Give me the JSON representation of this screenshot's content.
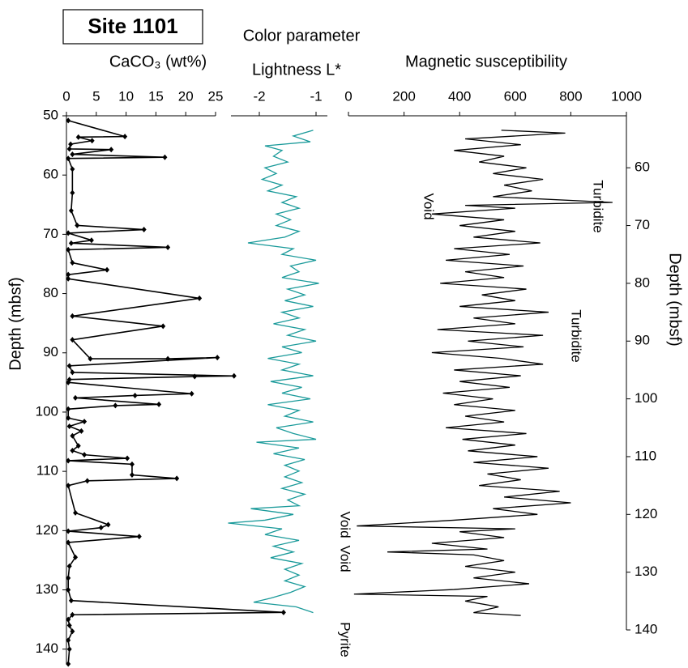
{
  "title": "Site 1101",
  "chart_data": [
    {
      "type": "line",
      "markers": true,
      "color": "#000000",
      "xlabel": "CaCO₃  (wt%)",
      "ylabel": "Depth  (mbsf)",
      "xlim": [
        0,
        25
      ],
      "xticks": [
        0,
        5,
        10,
        15,
        20,
        25
      ],
      "ylim": [
        50,
        142.5
      ],
      "yticks": [
        50,
        60,
        70,
        80,
        90,
        100,
        110,
        120,
        130,
        140
      ],
      "depth": [
        50.8,
        53.5,
        53.6,
        54.2,
        54.8,
        55.6,
        55.7,
        56.5,
        57.0,
        57.2,
        59.0,
        63.0,
        66.0,
        68.5,
        69.2,
        69.8,
        71.0,
        71.5,
        72.2,
        72.6,
        74.8,
        76.0,
        76.8,
        77.5,
        80.8,
        83.8,
        85.5,
        87.8,
        91.0,
        91.0,
        90.8,
        92.2,
        93.3,
        93.9,
        94.0,
        94.5,
        95.0,
        96.9,
        97.2,
        97.6,
        98.7,
        98.9,
        99.5,
        101.0,
        101.6,
        102.4,
        103.2,
        104.0,
        105.7,
        106.5,
        107.2,
        107.8,
        108.2,
        108.8,
        110.6,
        111.2,
        111.6,
        112.4,
        117.0,
        119.0,
        119.5,
        120.1,
        121.0,
        122.0,
        124.5,
        126.0,
        128.0,
        130.0,
        131.8,
        133.8,
        134.2,
        135.0,
        136.0,
        137.0,
        138.5,
        140.0,
        142.5
      ],
      "values": [
        0.3,
        9.8,
        2.0,
        4.3,
        0.7,
        0.5,
        7.5,
        1.0,
        16.5,
        0.3,
        1.0,
        1.0,
        0.8,
        1.8,
        13.0,
        0.3,
        4.2,
        0.8,
        17.0,
        0.3,
        1.0,
        6.8,
        0.3,
        0.3,
        22.3,
        1.0,
        16.2,
        1.0,
        4.0,
        17.0,
        25.3,
        0.5,
        1.0,
        28.1,
        21.5,
        0.5,
        0.3,
        21.0,
        11.5,
        1.5,
        15.5,
        8.2,
        0.3,
        0.3,
        3.0,
        0.5,
        2.5,
        1.0,
        2.0,
        1.0,
        3.0,
        10.2,
        0.3,
        11.0,
        11.0,
        18.5,
        3.5,
        0.3,
        1.5,
        7.0,
        5.8,
        0.3,
        12.2,
        0.3,
        1.5,
        0.5,
        0.3,
        0.3,
        0.8,
        36.4,
        1.0,
        0.3,
        0.5,
        1.0,
        0.3,
        0.5,
        0.3
      ]
    },
    {
      "type": "line",
      "color": "#1a9a9a",
      "title": "Color parameter",
      "xlabel": "Lightness L*",
      "xlim": [
        -2.5,
        -0.8
      ],
      "xticks": [
        -2,
        -1
      ],
      "ylim": [
        51,
        140
      ],
      "depth": [
        53.5,
        54.5,
        55.5,
        56.2,
        57,
        58,
        59,
        60,
        61,
        62,
        63,
        64,
        65,
        66,
        67,
        68,
        69,
        70,
        71,
        72,
        73,
        74,
        75,
        76,
        77,
        78,
        79,
        80,
        81,
        82,
        83,
        84,
        85,
        86,
        87,
        88,
        89,
        90,
        91,
        92,
        93,
        94,
        95,
        96,
        97,
        98,
        99,
        100,
        101,
        102,
        103,
        104,
        105,
        106,
        107,
        107.5,
        108.5,
        109.5,
        110.5,
        111.5,
        112.5,
        113.5,
        114.5,
        115.5,
        116.5,
        117.5,
        118.5,
        119,
        120,
        121,
        121.5,
        122.5,
        123.5,
        124.5,
        125.5,
        126.5,
        127.5,
        128.5,
        129.5,
        130.5,
        131.5,
        132.5,
        133.5,
        134.5,
        135.2,
        136,
        137
      ],
      "values": [
        -1.05,
        -1.4,
        -1.1,
        -1.9,
        -1.6,
        -1.75,
        -1.5,
        -1.9,
        -1.7,
        -1.95,
        -1.6,
        -1.85,
        -1.35,
        -1.6,
        -1.3,
        -1.7,
        -1.45,
        -1.7,
        -1.3,
        -1.55,
        -2.2,
        -1.4,
        -1.6,
        -1.0,
        -1.45,
        -1.3,
        -1.6,
        -0.95,
        -1.5,
        -1.2,
        -1.55,
        -1.05,
        -1.6,
        -1.3,
        -1.75,
        -1.2,
        -1.5,
        -1.0,
        -1.6,
        -1.25,
        -1.85,
        -1.3,
        -1.6,
        -1.05,
        -1.8,
        -1.25,
        -1.6,
        -1.1,
        -1.85,
        -1.3,
        -1.55,
        -1.05,
        -1.7,
        -1.4,
        -1.0,
        -2.05,
        -1.3,
        -1.75,
        -1.2,
        -1.55,
        -1.3,
        -1.55,
        -1.25,
        -1.6,
        -1.2,
        -1.5,
        -1.3,
        -2.15,
        -1.4,
        -1.9,
        -2.55,
        -1.6,
        -1.9,
        -1.3,
        -1.75,
        -1.4,
        -1.8,
        -1.25,
        -1.55,
        -1.3,
        -1.55,
        -1.2,
        -1.45,
        -1.8,
        -2.1,
        -1.35,
        -1.05
      ]
    },
    {
      "type": "line",
      "color": "#000000",
      "xlabel": "Magnetic susceptibility",
      "ylabel": "Depth  (mbsf)",
      "xlim": [
        0,
        1000
      ],
      "xticks": [
        0,
        200,
        400,
        600,
        800,
        1000
      ],
      "ylim": [
        51,
        140
      ],
      "yticks": [
        60,
        70,
        80,
        90,
        100,
        110,
        120,
        130,
        140
      ],
      "annotations": [
        "Void",
        "Turbidite",
        "Turbidite",
        "Void",
        "Void",
        "Pyrite"
      ],
      "depth": [
        53.5,
        54,
        55,
        56,
        57,
        58,
        59,
        60,
        61,
        62,
        63,
        64,
        65,
        66,
        66.5,
        67,
        68,
        69,
        70,
        71,
        72,
        73,
        74,
        75,
        76,
        77,
        78,
        79,
        80,
        81,
        82,
        83,
        84,
        85,
        86,
        87,
        88,
        89,
        90,
        91,
        92,
        93,
        94,
        95,
        96,
        97,
        98,
        99,
        100,
        101,
        102,
        103,
        104,
        105,
        106,
        107,
        108,
        109,
        110,
        111,
        112,
        113,
        114,
        115,
        116,
        117,
        118,
        119,
        120,
        121,
        122,
        122.5,
        123,
        124,
        125,
        126,
        126.5,
        127,
        128,
        129,
        130,
        131,
        132,
        133,
        133.8,
        134.2,
        135,
        136,
        137,
        137.5
      ],
      "values": [
        550,
        780,
        420,
        620,
        380,
        560,
        470,
        640,
        520,
        700,
        560,
        660,
        520,
        950,
        420,
        600,
        300,
        560,
        400,
        600,
        450,
        690,
        380,
        580,
        350,
        630,
        420,
        560,
        330,
        640,
        480,
        600,
        400,
        720,
        450,
        600,
        320,
        700,
        430,
        630,
        300,
        550,
        700,
        380,
        620,
        400,
        580,
        340,
        520,
        380,
        600,
        420,
        560,
        350,
        640,
        410,
        600,
        430,
        680,
        450,
        720,
        500,
        620,
        470,
        760,
        560,
        800,
        520,
        680,
        380,
        30,
        600,
        400,
        560,
        300,
        500,
        140,
        450,
        560,
        420,
        600,
        450,
        650,
        380,
        20,
        500,
        420,
        540,
        450,
        620
      ]
    }
  ]
}
